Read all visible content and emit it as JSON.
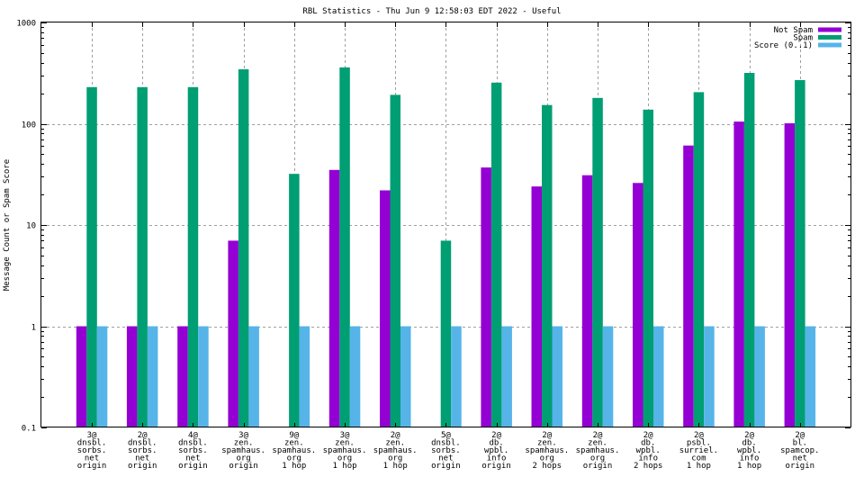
{
  "chart_data": {
    "type": "bar",
    "title": "RBL Statistics - Thu Jun  9 12:58:03 EDT 2022 - Useful",
    "xlabel": "",
    "ylabel": "Message Count or Spam Score",
    "yscale": "log",
    "ylim": [
      0.1,
      1000
    ],
    "yticks": [
      {
        "value": 0.1,
        "label": "0.1"
      },
      {
        "value": 1,
        "label": "1"
      },
      {
        "value": 10,
        "label": "10"
      },
      {
        "value": 100,
        "label": "100"
      },
      {
        "value": 1000,
        "label": "1000"
      }
    ],
    "grid": true,
    "legend_position": "top-right",
    "categories": [
      [
        "3@",
        "dnsbl.",
        "sorbs.",
        "net",
        "origin"
      ],
      [
        "2@",
        "dnsbl.",
        "sorbs.",
        "net",
        "origin"
      ],
      [
        "4@",
        "dnsbl.",
        "sorbs.",
        "net",
        "origin"
      ],
      [
        "3@",
        "zen.",
        "spamhaus.",
        "org",
        "origin"
      ],
      [
        "9@",
        "zen.",
        "spamhaus.",
        "org",
        "1 hop"
      ],
      [
        "3@",
        "zen.",
        "spamhaus.",
        "org",
        "1 hop"
      ],
      [
        "2@",
        "zen.",
        "spamhaus.",
        "org",
        "1 hop"
      ],
      [
        "5@",
        "dnsbl.",
        "sorbs.",
        "net",
        "origin"
      ],
      [
        "2@",
        "db.",
        "wpbl.",
        "info",
        "origin"
      ],
      [
        "2@",
        "zen.",
        "spamhaus.",
        "org",
        "2 hops"
      ],
      [
        "2@",
        "zen.",
        "spamhaus.",
        "org",
        "origin"
      ],
      [
        "2@",
        "db.",
        "wpbl.",
        "info",
        "2 hops"
      ],
      [
        "2@",
        "psbl.",
        "surriel.",
        "com",
        "1 hop"
      ],
      [
        "2@",
        "db.",
        "wpbl.",
        "info",
        "1 hop"
      ],
      [
        "2@",
        "bl.",
        "spamcop.",
        "net",
        "origin"
      ]
    ],
    "series": [
      {
        "name": "Not Spam",
        "color": "#9400d3",
        "values": [
          1,
          1,
          1,
          7,
          null,
          35,
          22,
          null,
          37,
          24,
          31,
          26,
          61,
          105,
          101
        ]
      },
      {
        "name": "Spam",
        "color": "#009e73",
        "values": [
          230,
          230,
          230,
          345,
          32,
          360,
          193,
          7,
          255,
          153,
          180,
          138,
          205,
          318,
          270
        ]
      },
      {
        "name": "Score (0..1)",
        "color": "#56b4e9",
        "values": [
          1,
          1,
          1,
          1,
          1,
          1,
          1,
          1,
          1,
          1,
          1,
          1,
          1,
          1,
          1
        ]
      }
    ]
  }
}
